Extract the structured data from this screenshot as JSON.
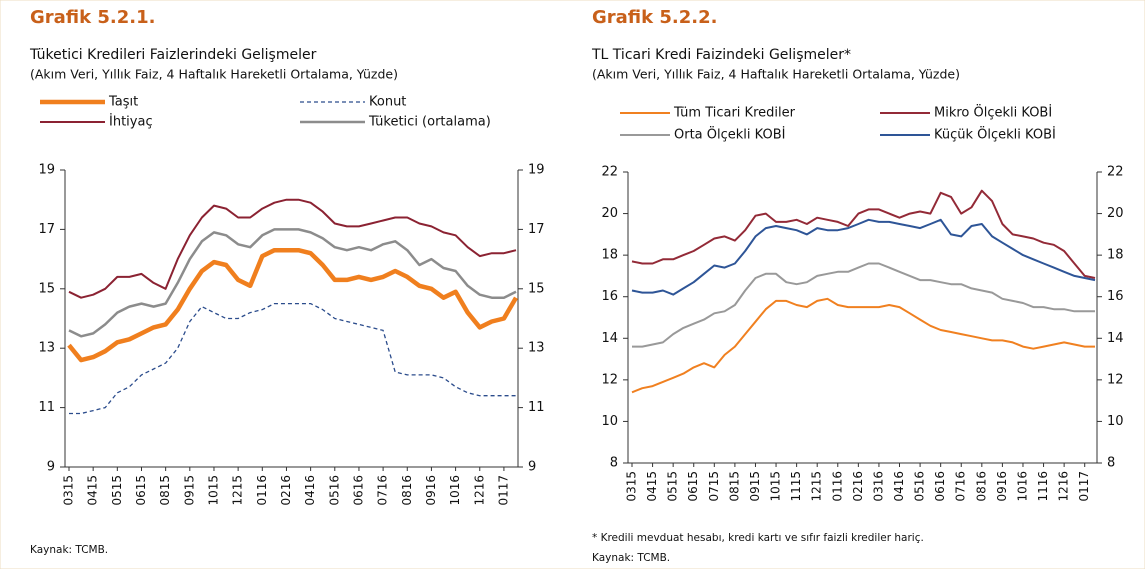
{
  "chart_data": [
    {
      "type": "line",
      "title": "Grafik 5.2.1.",
      "subtitle": "Tüketici Kredileri Faizlerindeki Gelişmeler",
      "note": "(Akım Veri, Yıllık Faiz, 4 Haftalık Hareketli Ortalama, Yüzde)",
      "source": "Kaynak: TCMB.",
      "categories": [
        "0315",
        null,
        "0415",
        null,
        "0515",
        null,
        "0615",
        null,
        "0815",
        null,
        "0915",
        null,
        "1015",
        null,
        "1215",
        null,
        "0116",
        null,
        "0216",
        null,
        "0416",
        null,
        "0516",
        null,
        "0616",
        null,
        "0716",
        null,
        "0816",
        null,
        "0916",
        null,
        "1016",
        null,
        "1216",
        null,
        "0117",
        null
      ],
      "series": [
        {
          "name": "Taşıt",
          "color": "#f07f1e",
          "line_width": 4.5,
          "values": [
            13.1,
            12.6,
            12.7,
            12.9,
            13.2,
            13.3,
            13.5,
            13.7,
            13.8,
            14.3,
            15.0,
            15.6,
            15.9,
            15.8,
            15.3,
            15.1,
            16.1,
            16.3,
            16.3,
            16.3,
            16.2,
            15.8,
            15.3,
            15.3,
            15.4,
            15.3,
            15.4,
            15.6,
            15.4,
            15.1,
            15.0,
            14.7,
            14.9,
            14.2,
            13.7,
            13.9,
            14.0,
            14.7
          ]
        },
        {
          "name": "Konut",
          "color": "#2b4c8c",
          "dashed": true,
          "line_width": 1.3,
          "values": [
            10.8,
            10.8,
            10.9,
            11.0,
            11.5,
            11.7,
            12.1,
            12.3,
            12.5,
            13.0,
            13.9,
            14.4,
            14.2,
            14.0,
            14.0,
            14.2,
            14.3,
            14.5,
            14.5,
            14.5,
            14.5,
            14.3,
            14.0,
            13.9,
            13.8,
            13.7,
            13.6,
            12.2,
            12.1,
            12.1,
            12.1,
            12.0,
            11.7,
            11.5,
            11.4,
            11.4,
            11.4,
            11.4
          ]
        },
        {
          "name": "İhtiyaç",
          "color": "#8b2232",
          "line_width": 2,
          "values": [
            14.9,
            14.7,
            14.8,
            15.0,
            15.4,
            15.4,
            15.5,
            15.2,
            15.0,
            16.0,
            16.8,
            17.4,
            17.8,
            17.7,
            17.4,
            17.4,
            17.7,
            17.9,
            18.0,
            18.0,
            17.9,
            17.6,
            17.2,
            17.1,
            17.1,
            17.2,
            17.3,
            17.4,
            17.4,
            17.2,
            17.1,
            16.9,
            16.8,
            16.4,
            16.1,
            16.2,
            16.2,
            16.3
          ]
        },
        {
          "name": "Tüketici (ortalama)",
          "color": "#8c8c8c",
          "line_width": 2.5,
          "values": [
            13.6,
            13.4,
            13.5,
            13.8,
            14.2,
            14.4,
            14.5,
            14.4,
            14.5,
            15.2,
            16.0,
            16.6,
            16.9,
            16.8,
            16.5,
            16.4,
            16.8,
            17.0,
            17.0,
            17.0,
            16.9,
            16.7,
            16.4,
            16.3,
            16.4,
            16.3,
            16.5,
            16.6,
            16.3,
            15.8,
            16.0,
            15.7,
            15.6,
            15.1,
            14.8,
            14.7,
            14.7,
            14.9
          ]
        }
      ],
      "ylim": [
        9,
        19
      ],
      "yticks": [
        9,
        11,
        13,
        15,
        17,
        19
      ],
      "y2lim": [
        9,
        19
      ],
      "y2ticks": [
        9,
        11,
        13,
        15,
        17,
        19
      ]
    },
    {
      "type": "line",
      "title": "Grafik 5.2.2.",
      "subtitle": "TL Ticari Kredi Faizindeki Gelişmeler*",
      "note": "(Akım Veri, Yıllık Faiz, 4 Haftalık Hareketli Ortalama, Yüzde)",
      "footnote": "* Kredili mevduat hesabı, kredi kartı ve sıfır faizli krediler hariç.",
      "source": "Kaynak: TCMB.",
      "categories": [
        "0315",
        null,
        "0415",
        null,
        "0515",
        null,
        "0615",
        null,
        "0715",
        null,
        "0815",
        null,
        "0915",
        null,
        "1015",
        null,
        "1115",
        null,
        "1215",
        null,
        "0116",
        null,
        "0216",
        null,
        "0316",
        null,
        "0416",
        null,
        "0516",
        null,
        "0616",
        null,
        "0716",
        null,
        "0816",
        null,
        "0916",
        null,
        "1016",
        null,
        "1116",
        null,
        "1216",
        null,
        "0117",
        null
      ],
      "series": [
        {
          "name": "Tüm Ticari Krediler",
          "color": "#f08020",
          "line_width": 2,
          "values": [
            11.4,
            11.6,
            11.7,
            11.9,
            12.1,
            12.3,
            12.6,
            12.8,
            12.6,
            13.2,
            13.6,
            14.2,
            14.8,
            15.4,
            15.8,
            15.8,
            15.6,
            15.5,
            15.8,
            15.9,
            15.6,
            15.5,
            15.5,
            15.5,
            15.5,
            15.6,
            15.5,
            15.2,
            14.9,
            14.6,
            14.4,
            14.3,
            14.2,
            14.1,
            14.0,
            13.9,
            13.9,
            13.8,
            13.6,
            13.5,
            13.6,
            13.7,
            13.8,
            13.7,
            13.6,
            13.6
          ]
        },
        {
          "name": "Mikro Ölçekli KOBİ",
          "color": "#932a37",
          "line_width": 2,
          "values": [
            17.7,
            17.6,
            17.6,
            17.8,
            17.8,
            18.0,
            18.2,
            18.5,
            18.8,
            18.9,
            18.7,
            19.2,
            19.9,
            20.0,
            19.6,
            19.6,
            19.7,
            19.5,
            19.8,
            19.7,
            19.6,
            19.4,
            20.0,
            20.2,
            20.2,
            20.0,
            19.8,
            20.0,
            20.1,
            20.0,
            21.0,
            20.8,
            20.0,
            20.3,
            21.1,
            20.6,
            19.5,
            19.0,
            18.9,
            18.8,
            18.6,
            18.5,
            18.2,
            17.6,
            17.0,
            16.9
          ]
        },
        {
          "name": "Orta Ölçekli KOBİ",
          "color": "#999999",
          "line_width": 2,
          "values": [
            13.6,
            13.6,
            13.7,
            13.8,
            14.2,
            14.5,
            14.7,
            14.9,
            15.2,
            15.3,
            15.6,
            16.3,
            16.9,
            17.1,
            17.1,
            16.7,
            16.6,
            16.7,
            17.0,
            17.1,
            17.2,
            17.2,
            17.4,
            17.6,
            17.6,
            17.4,
            17.2,
            17.0,
            16.8,
            16.8,
            16.7,
            16.6,
            16.6,
            16.4,
            16.3,
            16.2,
            15.9,
            15.8,
            15.7,
            15.5,
            15.5,
            15.4,
            15.4,
            15.3,
            15.3,
            15.3
          ]
        },
        {
          "name": "Küçük Ölçekli KOBİ",
          "color": "#2e5597",
          "line_width": 2,
          "values": [
            16.3,
            16.2,
            16.2,
            16.3,
            16.1,
            16.4,
            16.7,
            17.1,
            17.5,
            17.4,
            17.6,
            18.2,
            18.9,
            19.3,
            19.4,
            19.3,
            19.2,
            19.0,
            19.3,
            19.2,
            19.2,
            19.3,
            19.5,
            19.7,
            19.6,
            19.6,
            19.5,
            19.4,
            19.3,
            19.5,
            19.7,
            19.0,
            18.9,
            19.4,
            19.5,
            18.9,
            18.6,
            18.3,
            18.0,
            17.8,
            17.6,
            17.4,
            17.2,
            17.0,
            16.9,
            16.8
          ]
        }
      ],
      "ylim": [
        8,
        22
      ],
      "yticks": [
        8,
        10,
        12,
        14,
        16,
        18,
        20,
        22
      ],
      "y2lim": [
        8,
        22
      ],
      "y2ticks": [
        8,
        10,
        12,
        14,
        16,
        18,
        20,
        22
      ]
    }
  ]
}
